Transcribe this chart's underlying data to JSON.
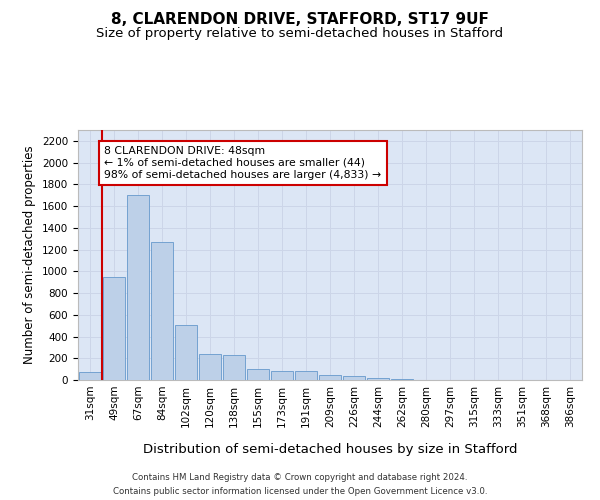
{
  "title_line1": "8, CLARENDON DRIVE, STAFFORD, ST17 9UF",
  "title_line2": "Size of property relative to semi-detached houses in Stafford",
  "xlabel": "Distribution of semi-detached houses by size in Stafford",
  "ylabel": "Number of semi-detached properties",
  "footer_line1": "Contains HM Land Registry data © Crown copyright and database right 2024.",
  "footer_line2": "Contains public sector information licensed under the Open Government Licence v3.0.",
  "categories": [
    "31sqm",
    "49sqm",
    "67sqm",
    "84sqm",
    "102sqm",
    "120sqm",
    "138sqm",
    "155sqm",
    "173sqm",
    "191sqm",
    "209sqm",
    "226sqm",
    "244sqm",
    "262sqm",
    "280sqm",
    "297sqm",
    "315sqm",
    "333sqm",
    "351sqm",
    "368sqm",
    "386sqm"
  ],
  "values": [
    75,
    950,
    1700,
    1270,
    510,
    240,
    230,
    100,
    80,
    80,
    50,
    35,
    20,
    5,
    0,
    0,
    0,
    0,
    0,
    0,
    0
  ],
  "bar_color": "#bdd0e8",
  "bar_edge_color": "#6699cc",
  "annotation_text": "8 CLARENDON DRIVE: 48sqm\n← 1% of semi-detached houses are smaller (44)\n98% of semi-detached houses are larger (4,833) →",
  "annotation_box_color": "#ffffff",
  "annotation_box_edge_color": "#cc0000",
  "ylim": [
    0,
    2300
  ],
  "yticks": [
    0,
    200,
    400,
    600,
    800,
    1000,
    1200,
    1400,
    1600,
    1800,
    2000,
    2200
  ],
  "grid_color": "#ccd5e8",
  "bg_color": "#dce6f5",
  "title_fontsize": 11,
  "subtitle_fontsize": 9.5,
  "xlabel_fontsize": 9.5,
  "ylabel_fontsize": 8.5,
  "tick_fontsize": 7.5,
  "red_line_color": "#cc0000",
  "red_line_x": 0.5
}
